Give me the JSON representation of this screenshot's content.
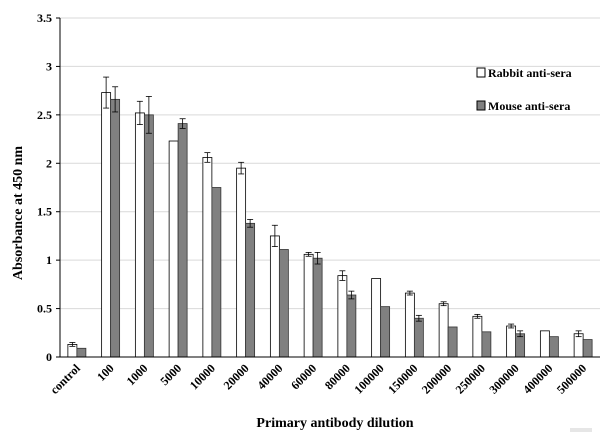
{
  "chart_data": {
    "type": "bar",
    "title": "",
    "xlabel": "Primary antibody dilution",
    "ylabel": "Absorbance at 450 nm",
    "ylim": [
      0,
      3.5
    ],
    "yticks": [
      "0",
      "0.5",
      "1",
      "1.5",
      "2",
      "2.5",
      "3",
      "3.5"
    ],
    "grid": true,
    "legend_position": "top-right",
    "categories": [
      "control",
      "100",
      "1000",
      "5000",
      "10000",
      "20000",
      "40000",
      "60000",
      "80000",
      "100000",
      "150000",
      "200000",
      "250000",
      "300000",
      "400000",
      "500000"
    ],
    "series": [
      {
        "name": "Rabbit anti-sera",
        "color": "#ffffff",
        "values": [
          0.13,
          2.73,
          2.52,
          2.23,
          2.06,
          1.95,
          1.25,
          1.06,
          0.84,
          0.81,
          0.66,
          0.55,
          0.42,
          0.32,
          0.27,
          0.24
        ],
        "errors": [
          0.02,
          0.16,
          0.12,
          0.0,
          0.05,
          0.06,
          0.11,
          0.02,
          0.05,
          0.0,
          0.02,
          0.02,
          0.02,
          0.02,
          0.0,
          0.03
        ]
      },
      {
        "name": "Mouse anti-sera",
        "color": "#808080",
        "values": [
          0.09,
          2.66,
          2.5,
          2.41,
          1.75,
          1.38,
          1.11,
          1.02,
          0.64,
          0.52,
          0.4,
          0.31,
          0.26,
          0.24,
          0.21,
          0.18
        ],
        "errors": [
          0.0,
          0.13,
          0.19,
          0.05,
          0.0,
          0.04,
          0.0,
          0.06,
          0.04,
          0.0,
          0.03,
          0.0,
          0.0,
          0.03,
          0.0,
          0.0
        ]
      }
    ]
  }
}
